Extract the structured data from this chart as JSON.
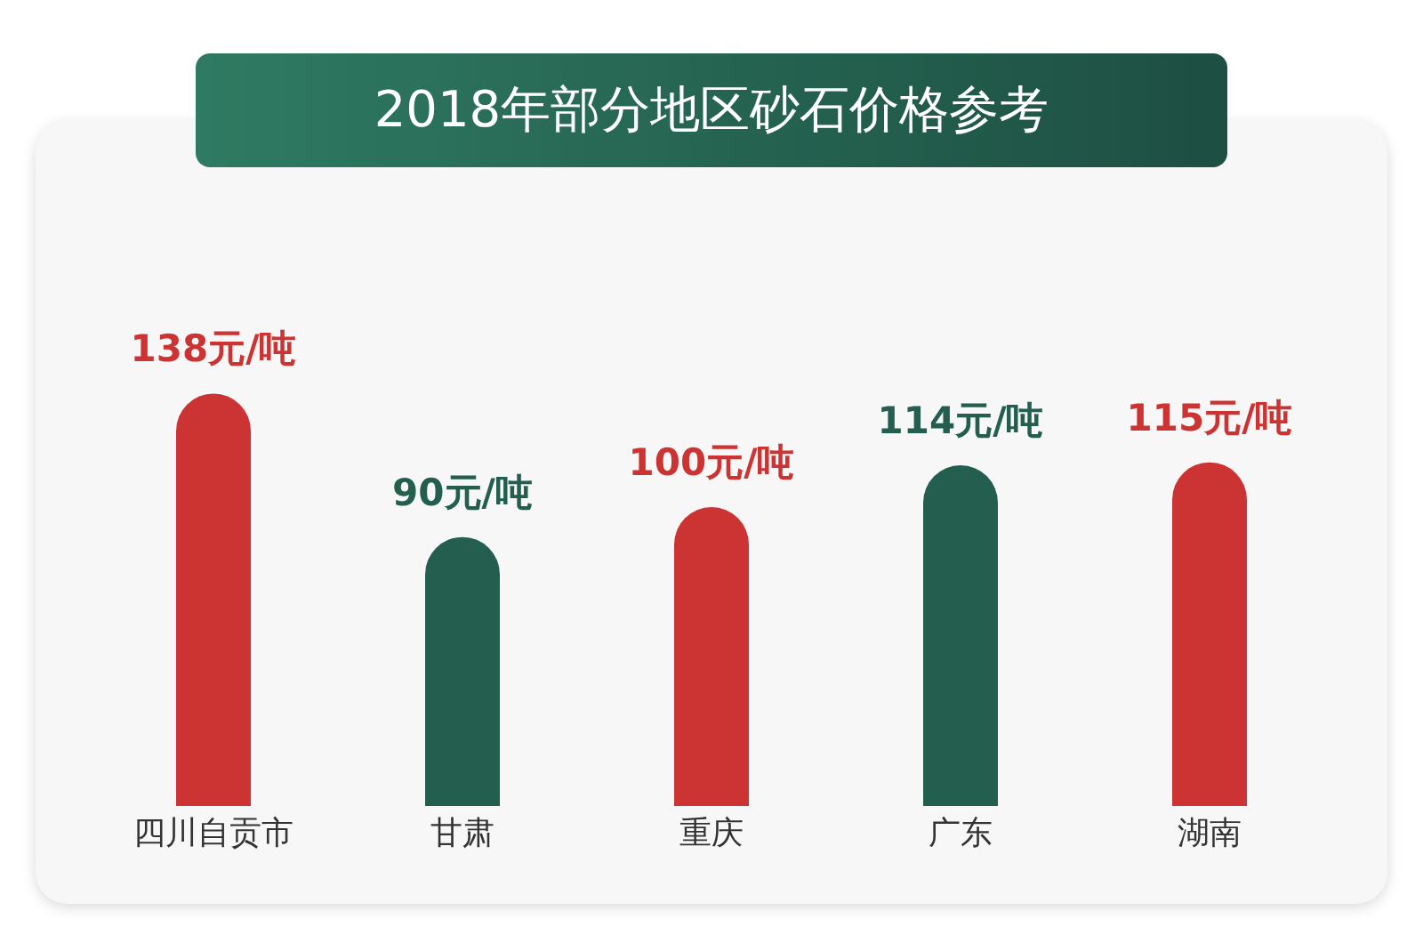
{
  "chart_data": {
    "type": "bar",
    "title": "2018年部分地区砂石价格参考",
    "categories": [
      "四川自贡市",
      "甘肃",
      "重庆",
      "广东",
      "湖南"
    ],
    "values": [
      138,
      90,
      100,
      114,
      115
    ],
    "colors": [
      "#cc3333",
      "#245e4f",
      "#cc3333",
      "#245e4f",
      "#cc3333"
    ],
    "value_labels": [
      "138元/吨",
      "90元/吨",
      "100元/吨",
      "114元/吨",
      "115元/吨"
    ],
    "tick_labels": "x",
    "legend": false
  }
}
